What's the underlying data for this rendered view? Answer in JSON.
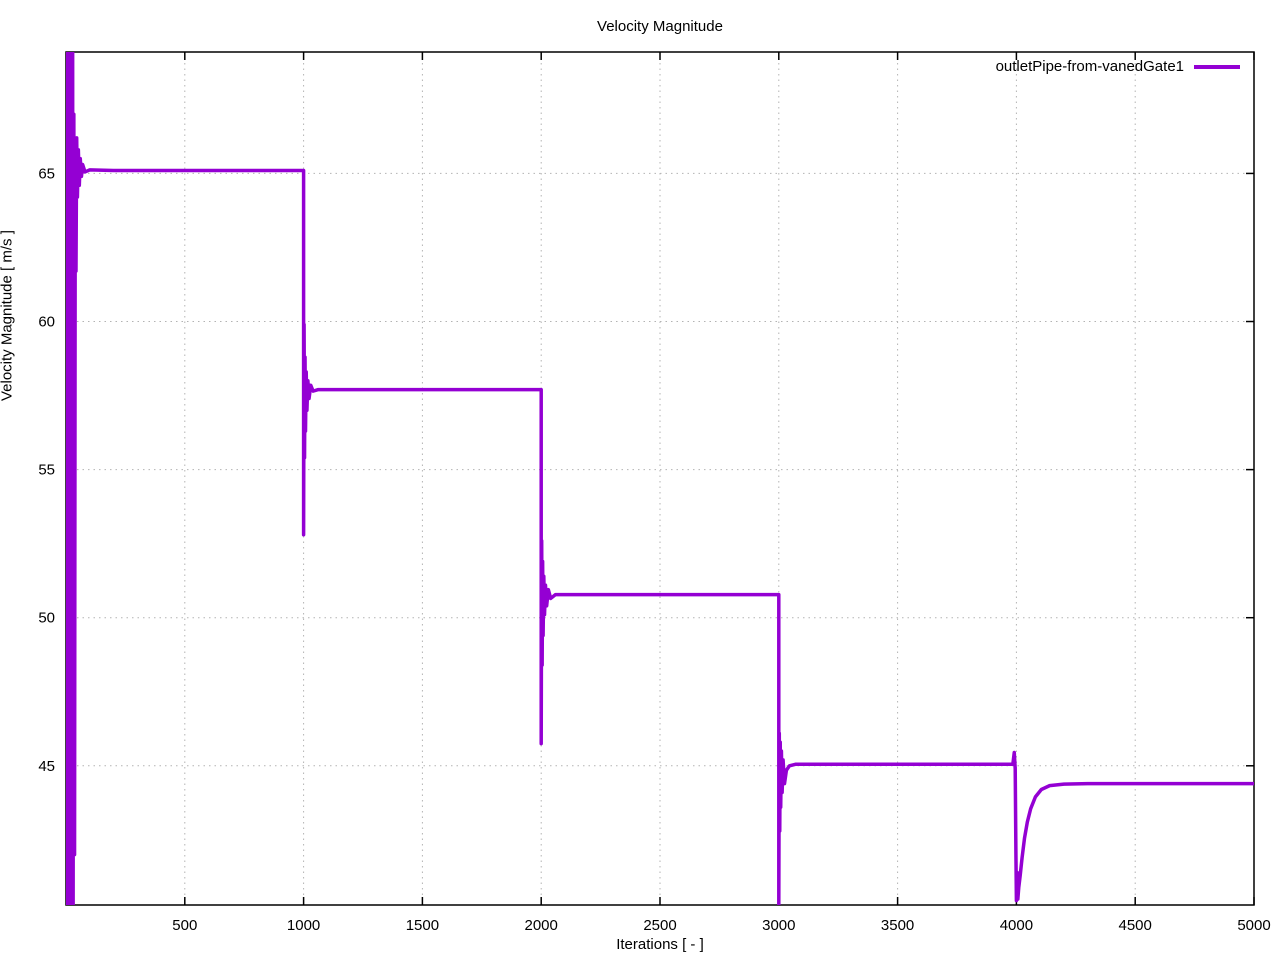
{
  "chart_data": {
    "type": "line",
    "title": "Velocity Magnitude",
    "xlabel": "Iterations [ - ]",
    "ylabel": "Velocity Magnitude [ m/s ]",
    "xlim": [
      0,
      5000
    ],
    "ylim": [
      40.3,
      69.1
    ],
    "xticks": [
      500,
      1000,
      1500,
      2000,
      2500,
      3000,
      3500,
      4000,
      4500,
      5000
    ],
    "yticks": [
      45,
      50,
      55,
      60,
      65
    ],
    "grid": "dotted",
    "legend_position": "top-right-inside",
    "background_color": "#ffffff",
    "grid_color": "#b3b3b3",
    "axis_color": "#000000",
    "series": [
      {
        "name": "outletPipe-from-vanedGate1",
        "color": "#9400d3",
        "line_width": 3.5,
        "points": [
          [
            0,
            65.1
          ],
          [
            4,
            69.1
          ],
          [
            6,
            40.3
          ],
          [
            8,
            69.1
          ],
          [
            10,
            40.3
          ],
          [
            12,
            69.1
          ],
          [
            14,
            40.3
          ],
          [
            16,
            69.1
          ],
          [
            18,
            40.3
          ],
          [
            20,
            69.1
          ],
          [
            22,
            40.3
          ],
          [
            24,
            69.1
          ],
          [
            26,
            40.3
          ],
          [
            28,
            69.1
          ],
          [
            30,
            40.3
          ],
          [
            33,
            67.0
          ],
          [
            36,
            42.0
          ],
          [
            39,
            66.0
          ],
          [
            42,
            61.7
          ],
          [
            45,
            66.2
          ],
          [
            48,
            64.2
          ],
          [
            52,
            65.8
          ],
          [
            56,
            64.6
          ],
          [
            60,
            65.5
          ],
          [
            65,
            64.9
          ],
          [
            70,
            65.3
          ],
          [
            80,
            65.05
          ],
          [
            100,
            65.12
          ],
          [
            200,
            65.1
          ],
          [
            990,
            65.1
          ],
          [
            1000,
            65.1
          ],
          [
            1000,
            52.8
          ],
          [
            1002,
            59.9
          ],
          [
            1004,
            55.4
          ],
          [
            1006,
            58.8
          ],
          [
            1008,
            56.3
          ],
          [
            1011,
            58.3
          ],
          [
            1014,
            57.0
          ],
          [
            1018,
            58.0
          ],
          [
            1023,
            57.4
          ],
          [
            1030,
            57.85
          ],
          [
            1040,
            57.65
          ],
          [
            1060,
            57.7
          ],
          [
            1990,
            57.7
          ],
          [
            2000,
            57.7
          ],
          [
            2000,
            45.75
          ],
          [
            2002,
            52.6
          ],
          [
            2004,
            48.4
          ],
          [
            2006,
            51.9
          ],
          [
            2008,
            49.4
          ],
          [
            2011,
            51.4
          ],
          [
            2014,
            50.1
          ],
          [
            2018,
            51.1
          ],
          [
            2023,
            50.4
          ],
          [
            2030,
            50.95
          ],
          [
            2040,
            50.65
          ],
          [
            2060,
            50.78
          ],
          [
            2990,
            50.78
          ],
          [
            3000,
            50.78
          ],
          [
            3000,
            40.3
          ],
          [
            3002,
            46.1
          ],
          [
            3004,
            42.8
          ],
          [
            3006,
            45.8
          ],
          [
            3008,
            43.6
          ],
          [
            3011,
            45.5
          ],
          [
            3014,
            44.1
          ],
          [
            3018,
            45.2
          ],
          [
            3024,
            44.4
          ],
          [
            3032,
            44.85
          ],
          [
            3045,
            45.0
          ],
          [
            3070,
            45.05
          ],
          [
            3960,
            45.05
          ],
          [
            3985,
            45.05
          ],
          [
            3991,
            45.45
          ],
          [
            3995,
            44.9
          ],
          [
            3998,
            42.0
          ],
          [
            4000,
            40.45
          ],
          [
            4003,
            41.4
          ],
          [
            4006,
            40.5
          ],
          [
            4010,
            40.9
          ],
          [
            4016,
            41.3
          ],
          [
            4024,
            41.9
          ],
          [
            4034,
            42.55
          ],
          [
            4046,
            43.1
          ],
          [
            4060,
            43.55
          ],
          [
            4080,
            43.95
          ],
          [
            4105,
            44.2
          ],
          [
            4140,
            44.33
          ],
          [
            4200,
            44.38
          ],
          [
            4300,
            44.4
          ],
          [
            5000,
            44.4
          ]
        ]
      }
    ]
  }
}
